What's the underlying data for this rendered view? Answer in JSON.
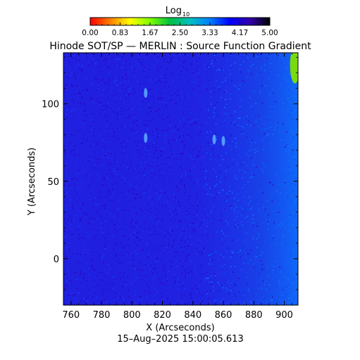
{
  "colorbar": {
    "label_main": "Log",
    "label_sub": "10",
    "range": [
      0.0,
      5.0
    ],
    "ticks": [
      "0.00",
      "0.83",
      "1.67",
      "2.50",
      "3.33",
      "4.17",
      "5.00"
    ],
    "colors": [
      "#ff0000",
      "#ff7f00",
      "#ffff00",
      "#7fff00",
      "#00c040",
      "#00c0c0",
      "#0080ff",
      "#0000ff",
      "#3300aa",
      "#000000"
    ]
  },
  "chart_data": {
    "type": "heatmap",
    "title": "Hinode SOT/SP — MERLIN : Source Function Gradient",
    "xlabel": "X (Arcseconds)",
    "ylabel": "Y (Arcseconds)",
    "xlim": [
      755,
      909
    ],
    "ylim": [
      -30,
      133
    ],
    "xticks": [
      "760",
      "780",
      "800",
      "820",
      "840",
      "860",
      "880",
      "900"
    ],
    "yticks": [
      "0",
      "50",
      "100"
    ],
    "grid": false,
    "background_color": "#2020e0",
    "bright_features": [
      {
        "x": 809,
        "y": 78,
        "note": "small bright patch"
      },
      {
        "x": 809,
        "y": 107,
        "note": "small bright patch"
      },
      {
        "x": 854,
        "y": 77,
        "note": "bright patch"
      },
      {
        "x": 860,
        "y": 76,
        "note": "bright patch"
      },
      {
        "x": 907,
        "y": 125,
        "note": "green edge region at top-right"
      }
    ]
  },
  "footer": {
    "timestamp": "15–Aug–2025 15:00:05.613"
  }
}
